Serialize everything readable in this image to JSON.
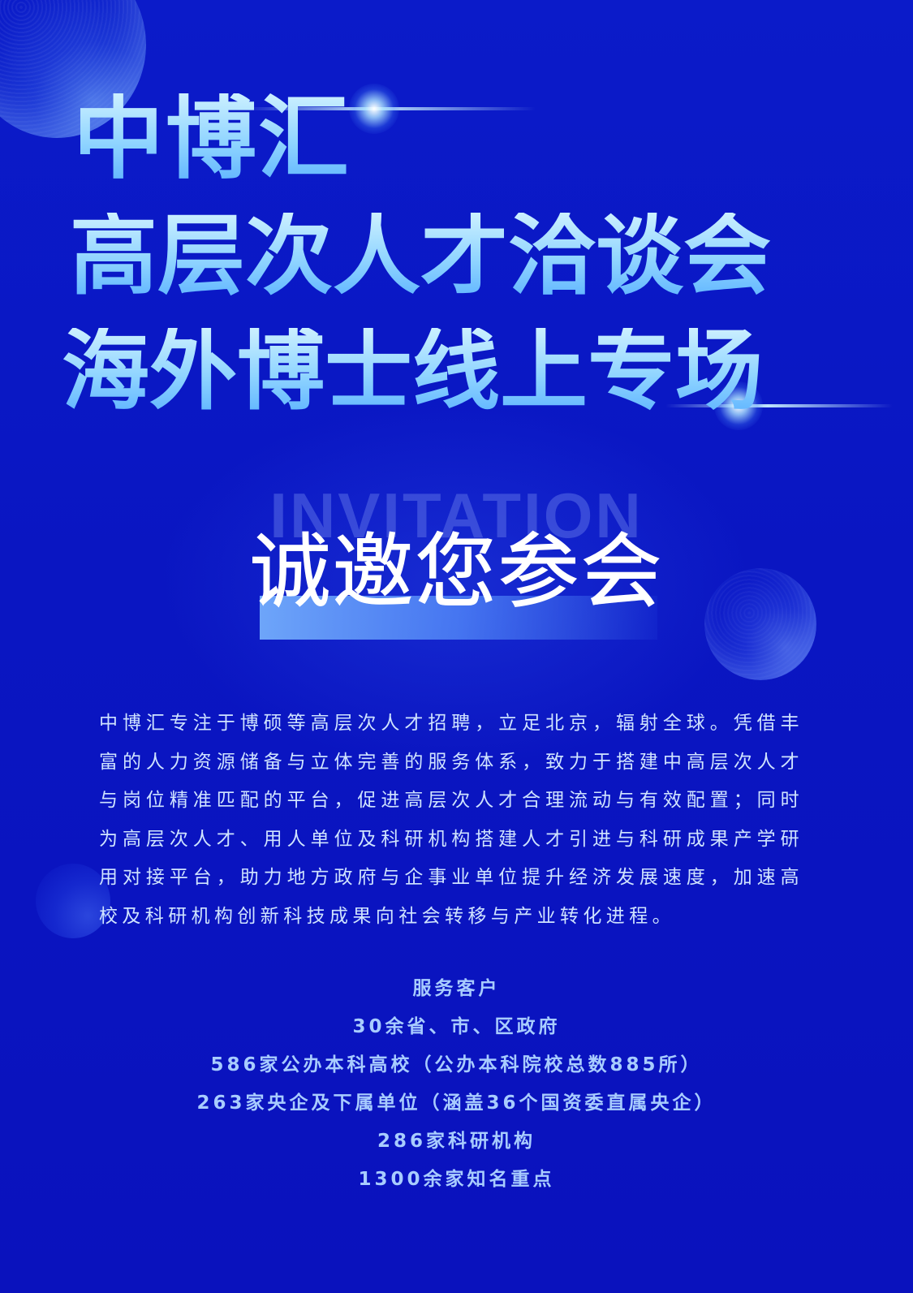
{
  "poster": {
    "title_lines": [
      "中博汇",
      "高层次人才洽谈会",
      "海外博士线上专场"
    ],
    "invitation": {
      "background_word": "INVITATION",
      "main_text": "诚邀您参会"
    },
    "description": "中博汇专注于博硕等高层次人才招聘，立足北京，辐射全球。凭借丰富的人力资源储备与立体完善的服务体系，致力于搭建中高层次人才与岗位精准匹配的平台，促进高层次人才合理流动与有效配置；同时为高层次人才、用人单位及科研机构搭建人才引进与科研成果产学研用对接平台，助力地方政府与企事业单位提升经济发展速度，加速高校及科研机构创新科技成果向社会转移与产业转化进程。",
    "services": {
      "heading": "服务客户",
      "items": [
        "30余省、市、区政府",
        "586家公办本科高校（公办本科院校总数885所）",
        "263家央企及下属单位（涵盖36个国资委直属央企）",
        "286家科研机构",
        "1300余家知名重点"
      ]
    },
    "colors": {
      "background": "#0a14c4",
      "title_gradient_top": "#ccf0ff",
      "title_gradient_bottom": "#5fb4ff",
      "body_text": "#cfe3ff",
      "services_text": "#a8ccff",
      "invite_text": "#ffffff"
    }
  }
}
